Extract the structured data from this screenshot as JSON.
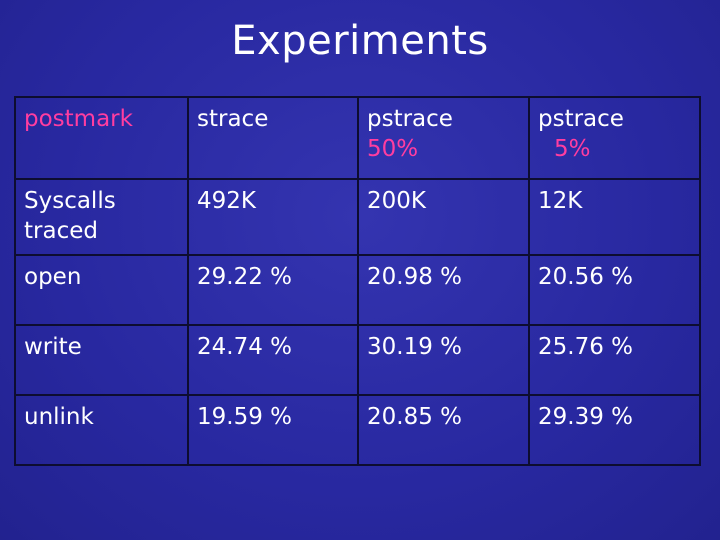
{
  "title": "Experiments",
  "table": {
    "header": {
      "corner": "postmark",
      "col1": "strace",
      "col2": "pstrace",
      "col2_sub": "50%",
      "col3": "pstrace",
      "col3_sub": "5%"
    },
    "rows": [
      {
        "label": "Syscalls traced",
        "c1": "492K",
        "c2": "200K",
        "c3": "12K"
      },
      {
        "label": "open",
        "c1": "29.22 %",
        "c2": "20.98 %",
        "c3": "20.56 %"
      },
      {
        "label": "write",
        "c1": "24.74 %",
        "c2": "30.19 %",
        "c3": "25.76 %"
      },
      {
        "label": "unlink",
        "c1": "19.59 %",
        "c2": "20.85 %",
        "c3": "29.39 %"
      }
    ]
  },
  "colors": {
    "background": "#2a2a9c",
    "accent": "#ff3da0",
    "text": "#ffffff"
  }
}
